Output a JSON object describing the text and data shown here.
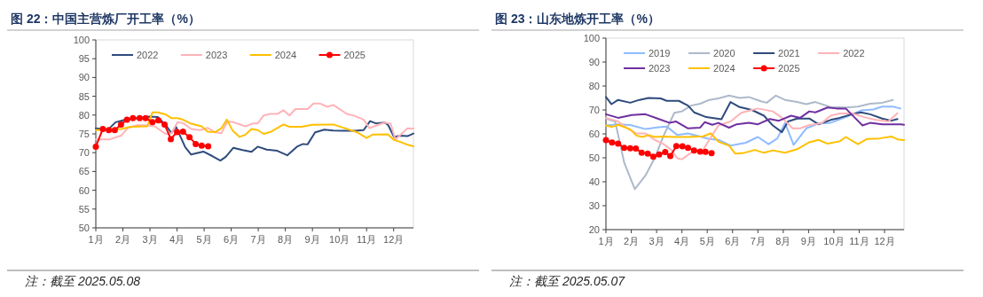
{
  "chart_data": [
    {
      "type": "line",
      "title": "图 22：中国主营炼厂开工率（%）",
      "annotations": [
        "注：截至 2025.05.08"
      ],
      "xlim": [
        1,
        12.73
      ],
      "ylim": [
        50,
        100
      ],
      "yticks": [
        50,
        55,
        60,
        65,
        70,
        75,
        80,
        85,
        90,
        95,
        100
      ],
      "xticks": [
        {
          "value": 1,
          "label": "1月"
        },
        {
          "value": 2,
          "label": "2月"
        },
        {
          "value": 3,
          "label": "3月"
        },
        {
          "value": 4,
          "label": "4月"
        },
        {
          "value": 5,
          "label": "5月"
        },
        {
          "value": 6,
          "label": "6月"
        },
        {
          "value": 7,
          "label": "7月"
        },
        {
          "value": 8,
          "label": "8月"
        },
        {
          "value": 9,
          "label": "9月"
        },
        {
          "value": 10,
          "label": "10月"
        },
        {
          "value": 11,
          "label": "11月"
        },
        {
          "value": 12,
          "label": "12月"
        }
      ],
      "legend": "top left",
      "series": [
        {
          "name": "2022",
          "color": "#2f4b7c",
          "marker": "none",
          "x": [
            1.0,
            1.22,
            1.45,
            1.73,
            2.06,
            2.4,
            2.96,
            3.29,
            3.63,
            3.79,
            3.96,
            4.3,
            4.52,
            4.97,
            5.3,
            5.6,
            5.8,
            6.08,
            6.42,
            6.75,
            6.98,
            7.31,
            7.7,
            8.07,
            8.43,
            8.65,
            8.82,
            9.1,
            9.44,
            9.77,
            10.11,
            10.55,
            10.89,
            11.13,
            11.34,
            11.67,
            11.8,
            12.01,
            12.23,
            12.51,
            12.73
          ],
          "values": [
            76.5,
            76.3,
            76.1,
            78.1,
            78.7,
            79,
            79.6,
            79.5,
            76.9,
            75.2,
            76.9,
            71.5,
            69.5,
            70.3,
            69.1,
            67.9,
            68.9,
            71.3,
            70.7,
            70.2,
            71.6,
            70.8,
            70.5,
            69.3,
            71.6,
            72.3,
            72.2,
            75.4,
            76.1,
            75.9,
            75.8,
            75.8,
            76,
            78.4,
            77.8,
            78,
            77.3,
            74.2,
            74.5,
            74.4,
            75.1
          ]
        },
        {
          "name": "2023",
          "color": "#ffb3b8",
          "marker": "none",
          "x": [
            1.0,
            1.5,
            1.95,
            2.17,
            2.51,
            2.84,
            3.18,
            3.57,
            3.79,
            4.02,
            4.24,
            4.52,
            4.85,
            5.13,
            5.41,
            5.64,
            5.86,
            6.08,
            6.53,
            6.81,
            6.98,
            7.2,
            7.42,
            7.7,
            7.93,
            8.15,
            8.37,
            8.82,
            9.04,
            9.27,
            9.55,
            9.77,
            10.27,
            10.55,
            10.89,
            11.11,
            11.39,
            11.67,
            11.89,
            12.06,
            12.23,
            12.51,
            12.73
          ],
          "values": [
            73.5,
            73.5,
            74.6,
            76.5,
            77.3,
            77.3,
            77,
            75,
            75.2,
            78.1,
            77.8,
            76.3,
            76,
            76.6,
            75.4,
            75.2,
            78.3,
            78.1,
            77,
            77.8,
            77.8,
            79.9,
            80.3,
            80.3,
            81.3,
            79.9,
            81.6,
            81.6,
            83.1,
            83.1,
            82.2,
            82.7,
            80.3,
            79.8,
            78.8,
            76.5,
            77.3,
            78,
            77.7,
            73.5,
            74.6,
            76.5,
            76.4
          ]
        },
        {
          "name": "2024",
          "color": "#ffc000",
          "marker": "none",
          "x": [
            1.0,
            1.95,
            2.28,
            2.9,
            3.09,
            3.29,
            3.57,
            3.79,
            4.02,
            4.24,
            4.52,
            4.91,
            5.13,
            5.41,
            5.64,
            5.84,
            6.06,
            6.31,
            6.53,
            6.75,
            6.98,
            7.2,
            7.48,
            7.93,
            8.15,
            8.6,
            8.99,
            9.77,
            10.66,
            11.0,
            11.22,
            11.78,
            12.01,
            12.23,
            12.51,
            12.73
          ],
          "values": [
            76,
            76.3,
            76.9,
            77,
            80.7,
            80.7,
            80.2,
            79.2,
            79.2,
            78.7,
            77.7,
            77,
            75.6,
            75.5,
            76.5,
            78.8,
            75.8,
            74.2,
            74.8,
            76.3,
            76,
            75,
            75.6,
            77.5,
            76.9,
            76.9,
            77.4,
            77.5,
            75.4,
            73.9,
            74.8,
            74.9,
            73.4,
            72.9,
            72.1,
            71.7
          ]
        },
        {
          "name": "2025",
          "color": "#ff0000",
          "marker": "circle",
          "x": [
            1.0,
            1.26,
            1.48,
            1.7,
            1.93,
            2.15,
            2.37,
            2.62,
            2.84,
            3.09,
            3.31,
            3.54,
            3.77,
            4.0,
            4.22,
            4.46,
            4.69,
            4.91,
            5.15
          ],
          "values": [
            71.6,
            76.3,
            76,
            76,
            77.5,
            78.8,
            79.2,
            79.2,
            79.2,
            78.1,
            78.6,
            77.5,
            73.6,
            75.5,
            75.6,
            74.1,
            72.3,
            71.9,
            71.7
          ]
        }
      ]
    },
    {
      "type": "line",
      "title": "图 23：山东地炼开工率（%）",
      "annotations": [
        "注：截至 2025.05.07"
      ],
      "xlim": [
        1,
        12.77
      ],
      "ylim": [
        20,
        100
      ],
      "yticks": [
        20,
        30,
        40,
        50,
        60,
        70,
        80,
        90,
        100
      ],
      "xticks": [
        {
          "value": 1,
          "label": "1月"
        },
        {
          "value": 2,
          "label": "2月"
        },
        {
          "value": 3,
          "label": "3月"
        },
        {
          "value": 4,
          "label": "4月"
        },
        {
          "value": 5,
          "label": "5月"
        },
        {
          "value": 6,
          "label": "6月"
        },
        {
          "value": 7,
          "label": "7月"
        },
        {
          "value": 8,
          "label": "8月"
        },
        {
          "value": 9,
          "label": "9月"
        },
        {
          "value": 10,
          "label": "10月"
        },
        {
          "value": 11,
          "label": "11月"
        },
        {
          "value": 12,
          "label": "12月"
        }
      ],
      "legend": "top",
      "series": [
        {
          "name": "2019",
          "color": "#8fbcff",
          "marker": "none",
          "x": [
            1.0,
            1.48,
            1.96,
            2.56,
            3.16,
            3.4,
            3.82,
            4.24,
            4.72,
            5.08,
            5.44,
            5.92,
            6.52,
            7.0,
            7.42,
            7.77,
            8.07,
            8.41,
            8.91,
            9.39,
            9.87,
            10.47,
            11.07,
            11.55,
            11.91,
            12.33,
            12.63
          ],
          "values": [
            63.5,
            64,
            63.7,
            62,
            62.9,
            63.1,
            59.5,
            60.2,
            58.9,
            57.9,
            57.5,
            55.1,
            56.3,
            58.7,
            55.7,
            58.1,
            64.6,
            55.4,
            62.3,
            64.3,
            64.6,
            67,
            69.8,
            70.2,
            71.4,
            71.4,
            70.6
          ]
        },
        {
          "name": "2020",
          "color": "#adb9ca",
          "marker": "none",
          "x": [
            1.0,
            1.36,
            1.54,
            1.72,
            2.14,
            2.56,
            2.92,
            3.28,
            3.7,
            4.0,
            4.36,
            4.72,
            5.08,
            5.44,
            5.86,
            6.28,
            6.64,
            7.12,
            7.35,
            7.71,
            8.07,
            8.55,
            8.91,
            9.27,
            9.87,
            10.47,
            10.95,
            11.43,
            11.91,
            12.33
          ],
          "values": [
            66.4,
            65.2,
            56.9,
            48,
            36.9,
            42.6,
            49.8,
            59.3,
            68.8,
            69.4,
            71.8,
            72.6,
            74.2,
            74.8,
            76,
            75,
            75.4,
            73.6,
            73,
            76,
            74.2,
            73.3,
            72.4,
            73.3,
            71.2,
            71,
            71.4,
            72.6,
            73,
            74.2
          ]
        },
        {
          "name": "2021",
          "color": "#2f4b7c",
          "marker": "none",
          "x": [
            1.0,
            1.22,
            1.48,
            1.96,
            2.32,
            2.68,
            3.16,
            3.4,
            3.88,
            4.24,
            4.48,
            4.96,
            5.56,
            5.92,
            6.28,
            6.76,
            7.24,
            7.59,
            7.95,
            8.19,
            8.55,
            9.03,
            9.39,
            9.87,
            10.23,
            10.71,
            11.07,
            11.43,
            11.91,
            12.27,
            12.51
          ],
          "values": [
            75.4,
            72.4,
            74.2,
            73,
            74.2,
            75,
            74.8,
            73.8,
            73.8,
            71.8,
            69,
            67,
            66.1,
            73.3,
            71.2,
            70,
            67.6,
            63.5,
            60.7,
            65.2,
            66.4,
            66.4,
            64,
            65.8,
            66.7,
            68.2,
            69,
            68.2,
            66.4,
            65.5,
            66.2
          ]
        },
        {
          "name": "2022",
          "color": "#ffb3b8",
          "marker": "none",
          "x": [
            1.0,
            1.48,
            1.84,
            2.2,
            2.56,
            2.92,
            3.28,
            3.58,
            3.82,
            4.0,
            4.36,
            4.84,
            5.08,
            5.44,
            5.92,
            6.34,
            6.76,
            7.0,
            7.59,
            7.95,
            8.37,
            8.67,
            9.03,
            9.51,
            9.87,
            10.23,
            10.71,
            11.19,
            11.67,
            12.15,
            12.51
          ],
          "values": [
            66.7,
            65.2,
            62.3,
            60.2,
            60.2,
            57.5,
            55.7,
            53.3,
            49.8,
            49.4,
            52.1,
            53.3,
            57.5,
            63.5,
            65.2,
            68.8,
            70,
            70.6,
            69.4,
            66.7,
            62.3,
            62.3,
            63.7,
            64.4,
            67.6,
            68.5,
            68.6,
            67,
            65.8,
            65.2,
            68.6
          ]
        },
        {
          "name": "2023",
          "color": "#7030a0",
          "marker": "none",
          "x": [
            1.0,
            1.48,
            2.02,
            2.56,
            3.04,
            3.52,
            3.76,
            4.24,
            4.72,
            4.9,
            5.2,
            5.44,
            5.86,
            6.16,
            6.64,
            7.0,
            7.47,
            7.83,
            8.31,
            8.67,
            9.03,
            9.27,
            9.75,
            10.11,
            10.47,
            10.83,
            11.13,
            11.43,
            11.91,
            12.63,
            12.77
          ],
          "values": [
            68.2,
            66.7,
            67.9,
            68.2,
            66.4,
            64.6,
            65.2,
            62.3,
            62.6,
            64.9,
            63.8,
            64.6,
            62.6,
            64,
            64.6,
            64,
            66.2,
            65.5,
            67.6,
            66.7,
            69.4,
            69,
            71,
            70.6,
            70.6,
            66.7,
            63.5,
            64.6,
            64,
            64,
            63.8
          ]
        },
        {
          "name": "2024",
          "color": "#ffc000",
          "marker": "none",
          "x": [
            1.0,
            1.24,
            1.48,
            1.96,
            2.2,
            2.44,
            2.68,
            2.92,
            3.28,
            3.64,
            4.24,
            4.84,
            5.14,
            5.44,
            5.86,
            6.1,
            6.4,
            6.88,
            7.24,
            7.59,
            8.07,
            8.55,
            9.03,
            9.39,
            9.75,
            10.23,
            10.47,
            10.95,
            11.31,
            11.79,
            12.27,
            12.51,
            12.77
          ],
          "values": [
            63.5,
            62.9,
            63.8,
            61.9,
            59.3,
            58.7,
            59.5,
            58.7,
            58.9,
            58.7,
            58.7,
            59,
            60.2,
            56.7,
            55.1,
            51.8,
            51.9,
            53.3,
            52.1,
            53.1,
            52.1,
            53.6,
            56.5,
            57.5,
            55.9,
            56.9,
            58.7,
            55.7,
            57.9,
            58.1,
            58.9,
            57.7,
            57.4
          ]
        },
        {
          "name": "2025",
          "color": "#ff0000",
          "marker": "circle",
          "x": [
            1.0,
            1.24,
            1.48,
            1.72,
            1.96,
            2.18,
            2.41,
            2.65,
            2.87,
            3.1,
            3.34,
            3.54,
            3.78,
            4.02,
            4.24,
            4.48,
            4.72,
            4.93,
            5.17
          ],
          "values": [
            57.4,
            56.4,
            55.9,
            54.2,
            54,
            53.9,
            52.1,
            51.8,
            50.5,
            51.4,
            52.4,
            50.7,
            54.9,
            54.8,
            54.2,
            53.1,
            52.6,
            52.5,
            51.9
          ]
        }
      ]
    }
  ]
}
